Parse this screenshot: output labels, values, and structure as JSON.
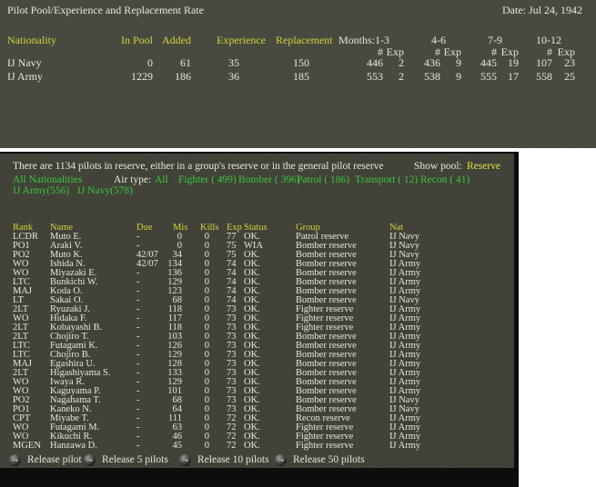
{
  "colors": {
    "panel_top_bg": "#54554a",
    "panel_bottom_bg": "#4c4d42",
    "window_border": "#0d0d0b",
    "header_yellow": "#d6d23c",
    "highlight_yellow": "#e6e242",
    "link_green": "#3cc53c",
    "text_white": "#e9e7dd"
  },
  "top_panel": {
    "title": "Pilot Pool/Experience and Replacement Rate",
    "date_label": "Date: Jul 24, 1942",
    "headers": {
      "nationality": "Nationality",
      "in_pool": "In Pool",
      "added": "Added",
      "experience": "Experience",
      "replacement": "Replacement",
      "months": "Months:"
    },
    "month_ranges": [
      "1-3",
      "4-6",
      "7-9",
      "10-12"
    ],
    "sub_headers": {
      "num": "#",
      "exp": "Exp"
    },
    "rows": [
      {
        "nationality": "IJ Navy",
        "in_pool": "0",
        "added": "61",
        "experience": "35",
        "replacement": "150",
        "m13_n": "446",
        "m13_e": "2",
        "m46_n": "436",
        "m46_e": "9",
        "m79_n": "445",
        "m79_e": "19",
        "m1012_n": "107",
        "m1012_e": "23"
      },
      {
        "nationality": "IJ Army",
        "in_pool": "1229",
        "added": "186",
        "experience": "36",
        "replacement": "185",
        "m13_n": "553",
        "m13_e": "2",
        "m46_n": "538",
        "m46_e": "9",
        "m79_n": "555",
        "m79_e": "17",
        "m1012_n": "558",
        "m1012_e": "25"
      }
    ]
  },
  "reserve_panel": {
    "summary": "There are 1134 pilots in reserve, either in a group's reserve or in the general pilot reserve",
    "show_pool_label": "Show pool:",
    "show_pool_value": "Reserve",
    "all_nationalities": "All Nationalities",
    "air_type_label": "Air type:",
    "air_types": [
      "All",
      "Fighter ( 499)",
      "Bomber ( 396)",
      "Patrol ( 186)",
      "Transport ( 12)",
      "Recon ( 41)"
    ],
    "nation_filters": [
      "IJ Army(556)",
      "IJ Navy(578)"
    ],
    "table": {
      "headers": [
        "Rank",
        "Name",
        "Due",
        "Mis",
        "Kills",
        "Exp",
        "Status",
        "Group",
        "Nat"
      ],
      "rows": [
        [
          "LCDR",
          "Muto E.",
          "-",
          "0",
          "0",
          "77",
          "OK.",
          "Patrol reserve",
          "IJ Navy"
        ],
        [
          "PO1",
          "Araki V.",
          "-",
          "0",
          "0",
          "75",
          "WIA",
          "Bomber reserve",
          "IJ Navy"
        ],
        [
          "PO2",
          "Muto K.",
          "42/07",
          "34",
          "0",
          "75",
          "OK.",
          "Bomber reserve",
          "IJ Navy"
        ],
        [
          "WO",
          "Ishida N.",
          "42/07",
          "134",
          "0",
          "74",
          "OK.",
          "Bomber reserve",
          "IJ Army"
        ],
        [
          "WO",
          "Miyazaki E.",
          "-",
          "136",
          "0",
          "74",
          "OK.",
          "Bomber reserve",
          "IJ Army"
        ],
        [
          "LTC",
          "Bunkichi W.",
          "-",
          "129",
          "0",
          "74",
          "OK.",
          "Bomber reserve",
          "IJ Army"
        ],
        [
          "MAJ",
          "Koda O.",
          "-",
          "123",
          "0",
          "74",
          "OK.",
          "Bomber reserve",
          "IJ Army"
        ],
        [
          "LT",
          "Sakai O.",
          "-",
          "68",
          "0",
          "74",
          "OK.",
          "Bomber reserve",
          "IJ Navy"
        ],
        [
          "2LT",
          "Ryuzaki J.",
          "-",
          "118",
          "0",
          "73",
          "OK.",
          "Fighter reserve",
          "IJ Army"
        ],
        [
          "WO",
          "Hidaka F.",
          "-",
          "117",
          "0",
          "73",
          "OK.",
          "Fighter reserve",
          "IJ Army"
        ],
        [
          "2LT",
          "Kobayashi B.",
          "-",
          "118",
          "0",
          "73",
          "OK.",
          "Fighter reserve",
          "IJ Army"
        ],
        [
          "2LT",
          "Chojiro T.",
          "-",
          "103",
          "0",
          "73",
          "OK.",
          "Bomber reserve",
          "IJ Army"
        ],
        [
          "LTC",
          "Futagami K.",
          "-",
          "126",
          "0",
          "73",
          "OK.",
          "Bomber reserve",
          "IJ Army"
        ],
        [
          "LTC",
          "Chojiro B.",
          "-",
          "129",
          "0",
          "73",
          "OK.",
          "Bomber reserve",
          "IJ Army"
        ],
        [
          "MAJ",
          "Egashira U.",
          "-",
          "128",
          "0",
          "73",
          "OK.",
          "Bomber reserve",
          "IJ Army"
        ],
        [
          "2LT",
          "Higashiyama S.",
          "-",
          "133",
          "0",
          "73",
          "OK.",
          "Bomber reserve",
          "IJ Army"
        ],
        [
          "WO",
          "Iwaya R.",
          "-",
          "129",
          "0",
          "73",
          "OK.",
          "Bomber reserve",
          "IJ Army"
        ],
        [
          "WO",
          "Kaguyama P.",
          "-",
          "101",
          "0",
          "73",
          "OK.",
          "Bomber reserve",
          "IJ Army"
        ],
        [
          "PO2",
          "Nagahama T.",
          "-",
          "68",
          "0",
          "73",
          "OK.",
          "Bomber reserve",
          "IJ Navy"
        ],
        [
          "PO1",
          "Kaneko N.",
          "-",
          "64",
          "0",
          "73",
          "OK.",
          "Bomber reserve",
          "IJ Navy"
        ],
        [
          "CPT",
          "Miyabe T.",
          "-",
          "111",
          "0",
          "72",
          "OK.",
          "Recon reserve",
          "IJ Army"
        ],
        [
          "WO",
          "Futagami M.",
          "-",
          "63",
          "0",
          "72",
          "OK.",
          "Fighter reserve",
          "IJ Army"
        ],
        [
          "WO",
          "Kikuchi R.",
          "-",
          "46",
          "0",
          "72",
          "OK.",
          "Fighter reserve",
          "IJ Army"
        ],
        [
          "MGEN",
          "Hanzawa D.",
          "-",
          "45",
          "0",
          "72",
          "OK.",
          "Fighter reserve",
          "IJ Army"
        ]
      ]
    },
    "buttons": [
      "Release pilot",
      "Release 5 pilots",
      "Release 10 pilots",
      "Release 50 pilots"
    ],
    "arrow_icon": "→"
  }
}
